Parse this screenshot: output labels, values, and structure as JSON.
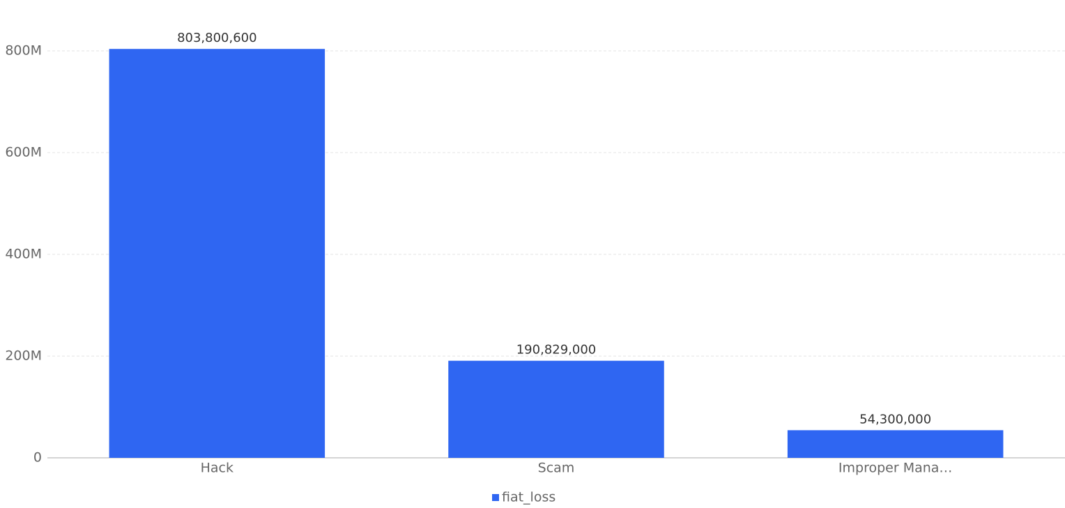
{
  "chart_data": {
    "type": "bar",
    "categories": [
      "Hack",
      "Scam",
      "Improper Mana…"
    ],
    "series": [
      {
        "name": "fiat_loss",
        "color": "#2f66f2",
        "values": [
          803800600,
          190829000,
          54300000
        ],
        "value_labels": [
          "803,800,600",
          "190,829,000",
          "54,300,000"
        ]
      }
    ],
    "ylim": [
      0,
      800000000
    ],
    "yticks": [
      0,
      {
        "value": 200000000,
        "label": "200M"
      },
      {
        "value": 400000000,
        "label": "400M"
      },
      {
        "value": 600000000,
        "label": "600M"
      },
      {
        "value": 800000000,
        "label": "800M"
      }
    ],
    "grid": true,
    "legend": "bottom"
  }
}
